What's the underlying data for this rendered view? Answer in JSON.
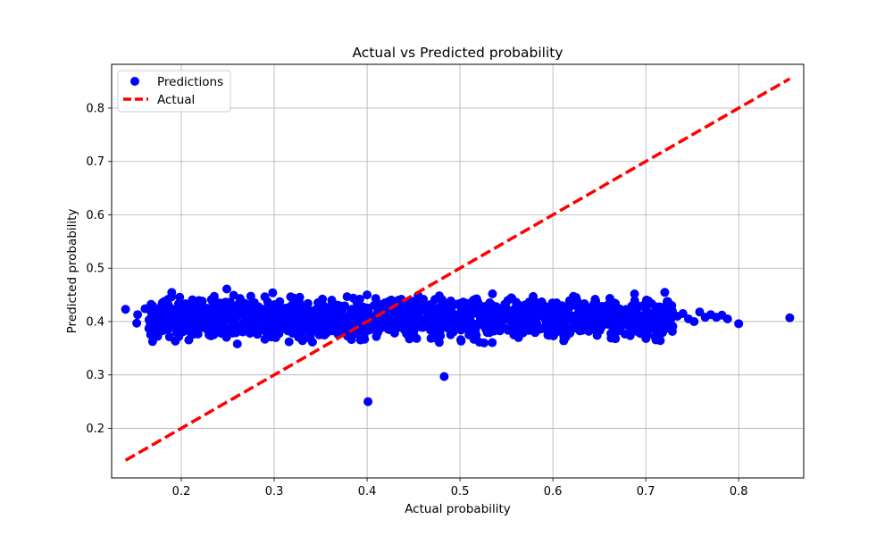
{
  "chart_data": {
    "type": "scatter",
    "title": "Actual vs Predicted probability",
    "xlabel": "Actual probability",
    "ylabel": "Predicted probability",
    "xlim": [
      0.125,
      0.87
    ],
    "ylim": [
      0.107,
      0.882
    ],
    "xticks": [
      "0.2",
      "0.3",
      "0.4",
      "0.5",
      "0.6",
      "0.7",
      "0.8"
    ],
    "xtick_values": [
      0.2,
      0.3,
      0.4,
      0.5,
      0.6,
      0.7,
      0.8
    ],
    "yticks": [
      "0.2",
      "0.3",
      "0.4",
      "0.5",
      "0.6",
      "0.7",
      "0.8"
    ],
    "ytick_values": [
      0.2,
      0.3,
      0.4,
      0.5,
      0.6,
      0.7,
      0.8
    ],
    "grid": true,
    "legend_placement": "top-left",
    "series": [
      {
        "name": "Predictions",
        "kind": "scatter",
        "color": "#0000ff",
        "points": [
          [
            0.14,
            0.423
          ],
          [
            0.152,
            0.397
          ],
          [
            0.153,
            0.413
          ],
          [
            0.161,
            0.424
          ],
          [
            0.166,
            0.39
          ],
          [
            0.168,
            0.407
          ],
          [
            0.174,
            0.418
          ],
          [
            0.18,
            0.383
          ],
          [
            0.182,
            0.427
          ],
          [
            0.187,
            0.4
          ],
          [
            0.19,
            0.412
          ],
          [
            0.195,
            0.38
          ],
          [
            0.198,
            0.421
          ],
          [
            0.205,
            0.392
          ],
          [
            0.21,
            0.405
          ],
          [
            0.215,
            0.386
          ],
          [
            0.22,
            0.42
          ],
          [
            0.226,
            0.398
          ],
          [
            0.232,
            0.41
          ],
          [
            0.238,
            0.43
          ],
          [
            0.243,
            0.378
          ],
          [
            0.249,
            0.461
          ],
          [
            0.253,
            0.415
          ],
          [
            0.259,
            0.395
          ],
          [
            0.265,
            0.422
          ],
          [
            0.27,
            0.388
          ],
          [
            0.276,
            0.408
          ],
          [
            0.28,
            0.428
          ],
          [
            0.286,
            0.392
          ],
          [
            0.29,
            0.367
          ],
          [
            0.293,
            0.437
          ],
          [
            0.297,
            0.375
          ],
          [
            0.302,
            0.412
          ],
          [
            0.308,
            0.398
          ],
          [
            0.314,
            0.425
          ],
          [
            0.32,
            0.378
          ],
          [
            0.326,
            0.434
          ],
          [
            0.332,
            0.402
          ],
          [
            0.338,
            0.385
          ],
          [
            0.344,
            0.418
          ],
          [
            0.35,
            0.427
          ],
          [
            0.356,
            0.378
          ],
          [
            0.362,
            0.44
          ],
          [
            0.368,
            0.395
          ],
          [
            0.374,
            0.41
          ],
          [
            0.38,
            0.388
          ],
          [
            0.386,
            0.422
          ],
          [
            0.392,
            0.405
          ],
          [
            0.395,
            0.373
          ],
          [
            0.4,
            0.45
          ],
          [
            0.401,
            0.25
          ],
          [
            0.405,
            0.392
          ],
          [
            0.41,
            0.372
          ],
          [
            0.416,
            0.415
          ],
          [
            0.422,
            0.43
          ],
          [
            0.428,
            0.398
          ],
          [
            0.434,
            0.44
          ],
          [
            0.44,
            0.385
          ],
          [
            0.446,
            0.412
          ],
          [
            0.45,
            0.376
          ],
          [
            0.456,
            0.425
          ],
          [
            0.462,
            0.395
          ],
          [
            0.468,
            0.408
          ],
          [
            0.474,
            0.375
          ],
          [
            0.48,
            0.42
          ],
          [
            0.483,
            0.297
          ],
          [
            0.486,
            0.392
          ],
          [
            0.492,
            0.43
          ],
          [
            0.498,
            0.4
          ],
          [
            0.504,
            0.415
          ],
          [
            0.51,
            0.385
          ],
          [
            0.516,
            0.425
          ],
          [
            0.522,
            0.405
          ],
          [
            0.526,
            0.36
          ],
          [
            0.53,
            0.418
          ],
          [
            0.535,
            0.452
          ],
          [
            0.54,
            0.395
          ],
          [
            0.546,
            0.412
          ],
          [
            0.552,
            0.42
          ],
          [
            0.558,
            0.375
          ],
          [
            0.564,
            0.43
          ],
          [
            0.57,
            0.398
          ],
          [
            0.576,
            0.41
          ],
          [
            0.582,
            0.392
          ],
          [
            0.588,
            0.437
          ],
          [
            0.594,
            0.405
          ],
          [
            0.6,
            0.418
          ],
          [
            0.606,
            0.395
          ],
          [
            0.612,
            0.41
          ],
          [
            0.618,
            0.438
          ],
          [
            0.624,
            0.398
          ],
          [
            0.63,
            0.422
          ],
          [
            0.636,
            0.405
          ],
          [
            0.642,
            0.428
          ],
          [
            0.648,
            0.395
          ],
          [
            0.654,
            0.415
          ],
          [
            0.66,
            0.4
          ],
          [
            0.666,
            0.418
          ],
          [
            0.672,
            0.395
          ],
          [
            0.678,
            0.412
          ],
          [
            0.684,
            0.405
          ],
          [
            0.69,
            0.418
          ],
          [
            0.696,
            0.39
          ],
          [
            0.701,
            0.432
          ],
          [
            0.706,
            0.408
          ],
          [
            0.712,
            0.415
          ],
          [
            0.718,
            0.42
          ],
          [
            0.724,
            0.405
          ],
          [
            0.728,
            0.43
          ],
          [
            0.734,
            0.41
          ],
          [
            0.74,
            0.415
          ],
          [
            0.746,
            0.405
          ],
          [
            0.752,
            0.4
          ],
          [
            0.758,
            0.418
          ],
          [
            0.764,
            0.408
          ],
          [
            0.77,
            0.413
          ],
          [
            0.776,
            0.408
          ],
          [
            0.782,
            0.412
          ],
          [
            0.788,
            0.405
          ],
          [
            0.8,
            0.396
          ],
          [
            0.855,
            0.407
          ]
        ],
        "dense_band": {
          "x_range": [
            0.165,
            0.73
          ],
          "y_center": 0.407,
          "y_spread": 0.018
        }
      },
      {
        "name": "Actual",
        "kind": "line",
        "style": "dashed",
        "color": "#ff0000",
        "points": [
          [
            0.14,
            0.14
          ],
          [
            0.855,
            0.855
          ]
        ]
      }
    ]
  }
}
